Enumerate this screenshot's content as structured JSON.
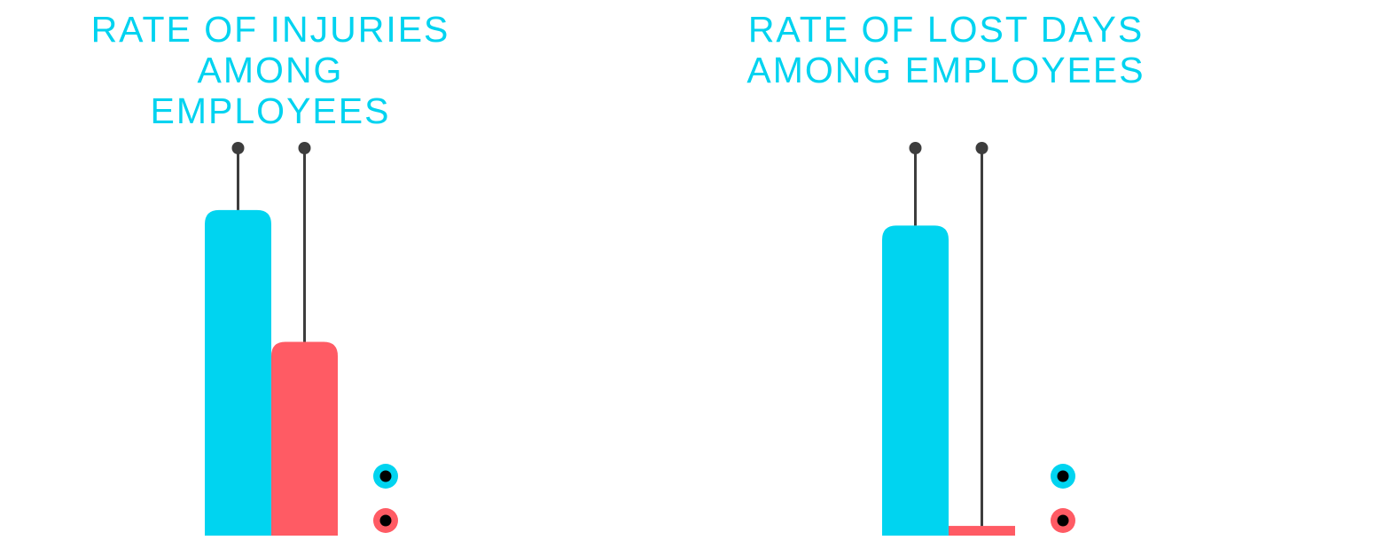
{
  "chart_data": [
    {
      "type": "bar",
      "title": "RATE OF INJURIES AMONG EMPLOYEES",
      "title_lines": [
        "RATE OF INJURIES AMONG",
        "EMPLOYEES"
      ],
      "categories": [
        "",
        ""
      ],
      "values": [
        0.84,
        0.5
      ],
      "ylim": [
        0,
        1
      ],
      "grid": false,
      "legend": {
        "position": "bottom-right",
        "entries": [
          "",
          ""
        ]
      },
      "colors": [
        "#00d4f0",
        "#ff5b64"
      ]
    },
    {
      "type": "bar",
      "title": "RATE OF LOST DAYS AMONG EMPLOYEES",
      "title_lines": [
        "RATE OF LOST DAYS",
        "AMONG EMPLOYEES"
      ],
      "categories": [
        "",
        ""
      ],
      "values": [
        0.8,
        0.025
      ],
      "ylim": [
        0,
        1
      ],
      "grid": false,
      "legend": {
        "position": "bottom-right",
        "entries": [
          "",
          ""
        ]
      },
      "colors": [
        "#00d4f0",
        "#ff5b64"
      ]
    }
  ],
  "colors": {
    "title": "#00d3f0",
    "stem": "#3d3d3d",
    "legend_dot": "#000000"
  }
}
